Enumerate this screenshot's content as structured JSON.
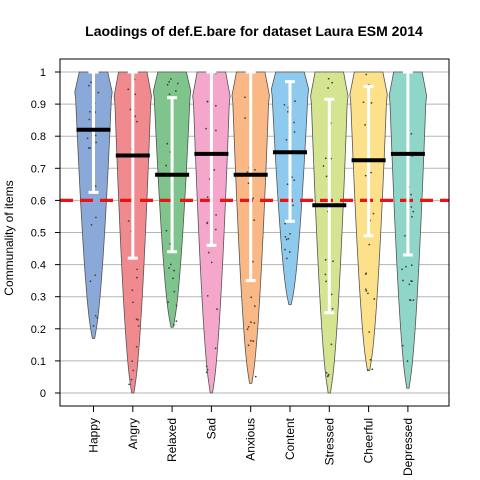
{
  "chart_data": {
    "type": "violin",
    "title": "Laodings of def.E.bare for dataset Laura ESM 2014",
    "xlabel": "",
    "ylabel": "Communality of items",
    "ylim": [
      -0.03,
      1.04
    ],
    "yticks": [
      "0",
      "0.1",
      "0.2",
      "0.3",
      "0.4",
      "0.5",
      "0.6",
      "0.7",
      "0.8",
      "0.9",
      "1"
    ],
    "reference_line": {
      "value": 0.6,
      "color": "#ee1111",
      "style": "dashed"
    },
    "series": [
      {
        "name": "Happy",
        "color": "#8aa8d8",
        "mean": 0.82,
        "ci": [
          0.625,
          1.0
        ],
        "min": 0.17,
        "max": 1.0
      },
      {
        "name": "Angry",
        "color": "#f08a8e",
        "mean": 0.74,
        "ci": [
          0.42,
          1.0
        ],
        "min": 0.0,
        "max": 1.0
      },
      {
        "name": "Relaxed",
        "color": "#7ec48c",
        "mean": 0.68,
        "ci": [
          0.44,
          0.92
        ],
        "min": 0.205,
        "max": 1.0
      },
      {
        "name": "Sad",
        "color": "#f4a7cb",
        "mean": 0.745,
        "ci": [
          0.46,
          1.0
        ],
        "min": 0.0,
        "max": 1.0
      },
      {
        "name": "Anxious",
        "color": "#f9b886",
        "mean": 0.68,
        "ci": [
          0.35,
          1.0
        ],
        "min": 0.03,
        "max": 1.0
      },
      {
        "name": "Content",
        "color": "#8ecaee",
        "mean": 0.75,
        "ci": [
          0.535,
          0.97
        ],
        "min": 0.275,
        "max": 1.0
      },
      {
        "name": "Stressed",
        "color": "#d4e490",
        "mean": 0.585,
        "ci": [
          0.25,
          0.915
        ],
        "min": 0.0,
        "max": 1.0
      },
      {
        "name": "Cheerful",
        "color": "#fde18a",
        "mean": 0.725,
        "ci": [
          0.49,
          0.955
        ],
        "min": 0.07,
        "max": 1.0
      },
      {
        "name": "Depressed",
        "color": "#8fd5c8",
        "mean": 0.745,
        "ci": [
          0.43,
          1.0
        ],
        "min": 0.015,
        "max": 1.0
      }
    ]
  }
}
